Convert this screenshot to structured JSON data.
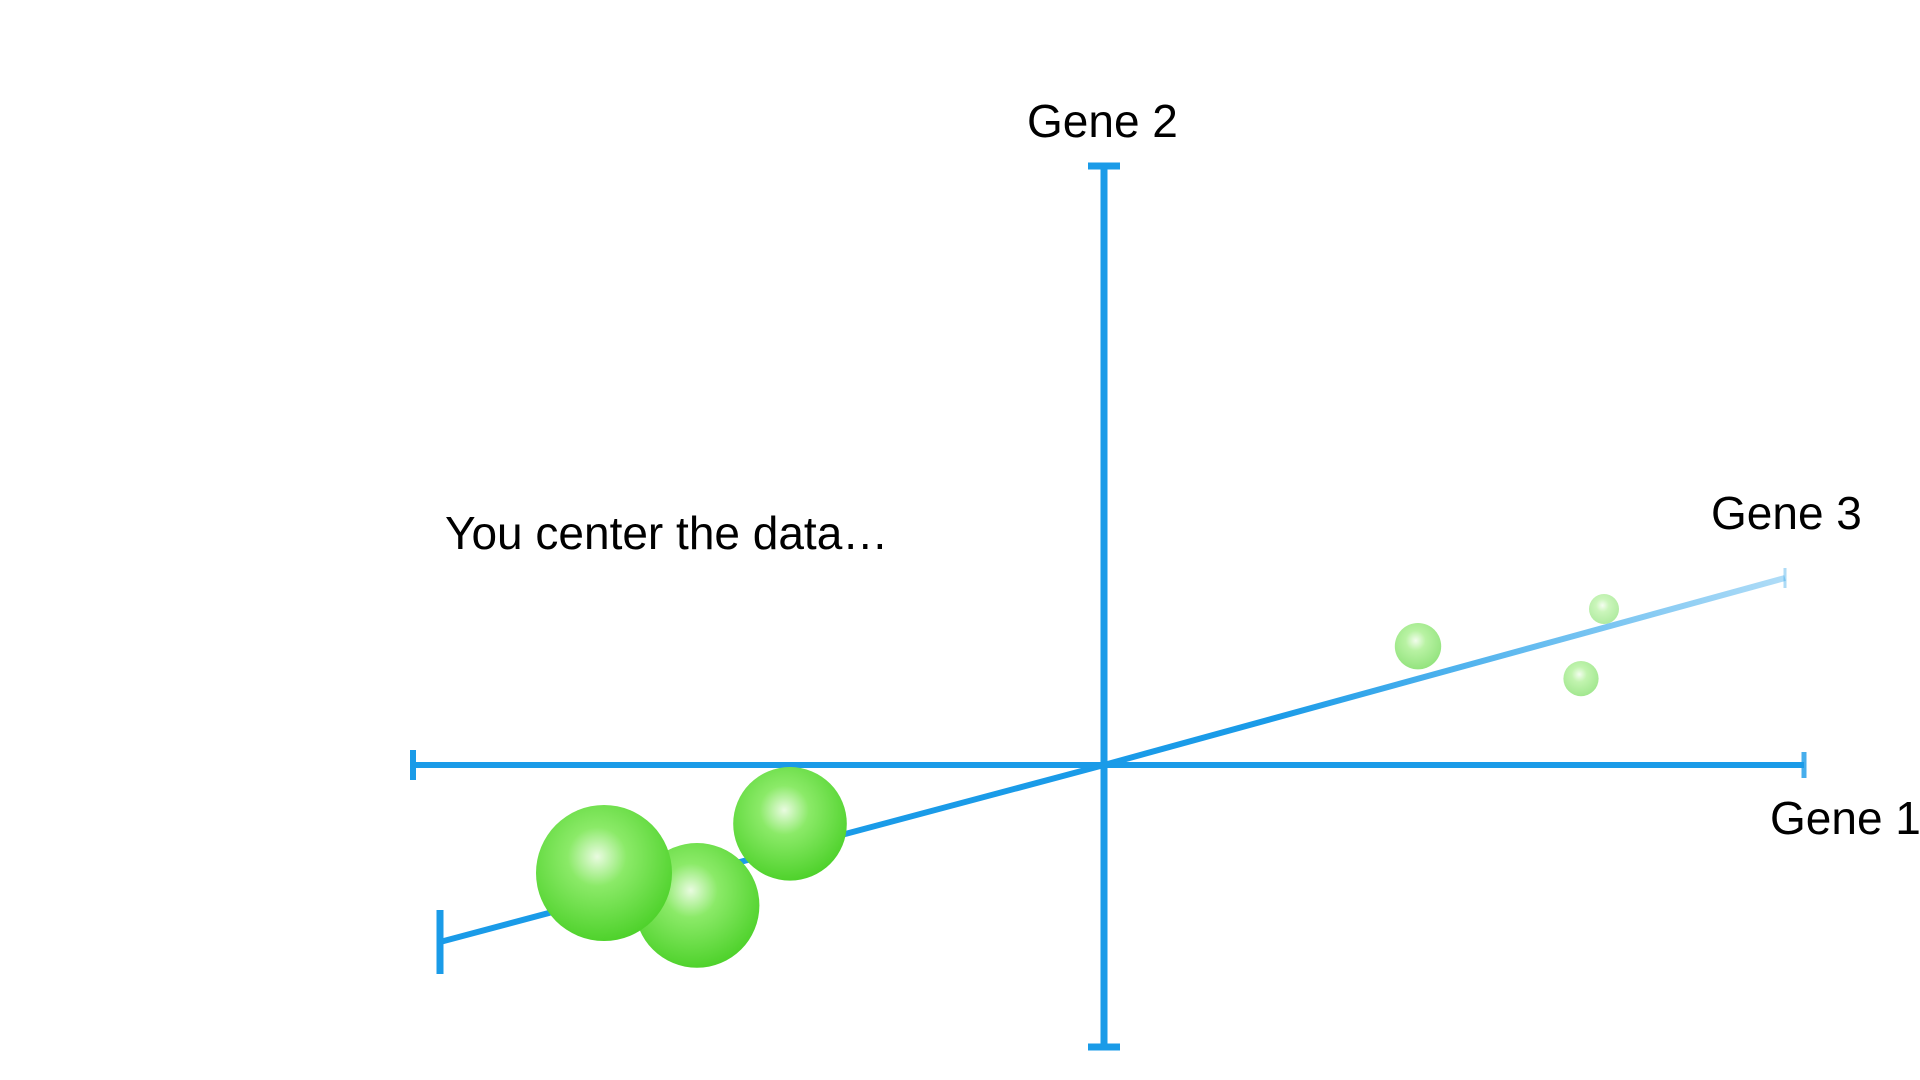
{
  "diagram": {
    "caption": "You center the data…",
    "axes": [
      {
        "id": "gene1",
        "label": "Gene 1"
      },
      {
        "id": "gene2",
        "label": "Gene 2"
      },
      {
        "id": "gene3",
        "label": "Gene 3"
      }
    ],
    "axis_color": "#1a9be8",
    "point_color": "#5fdc3c",
    "points": [
      {
        "gene1": -3.0,
        "gene2": -0.5,
        "gene3": -1.0
      },
      {
        "gene1": -2.0,
        "gene2": -0.2,
        "gene3": -0.6
      },
      {
        "gene1": -2.5,
        "gene2": -1.3,
        "gene3": -0.8
      },
      {
        "gene1": 2.0,
        "gene2": 1.2,
        "gene3": 0.6
      },
      {
        "gene1": 3.0,
        "gene2": 1.3,
        "gene3": 1.0
      },
      {
        "gene1": 3.5,
        "gene2": 0.4,
        "gene3": 0.8
      }
    ]
  }
}
